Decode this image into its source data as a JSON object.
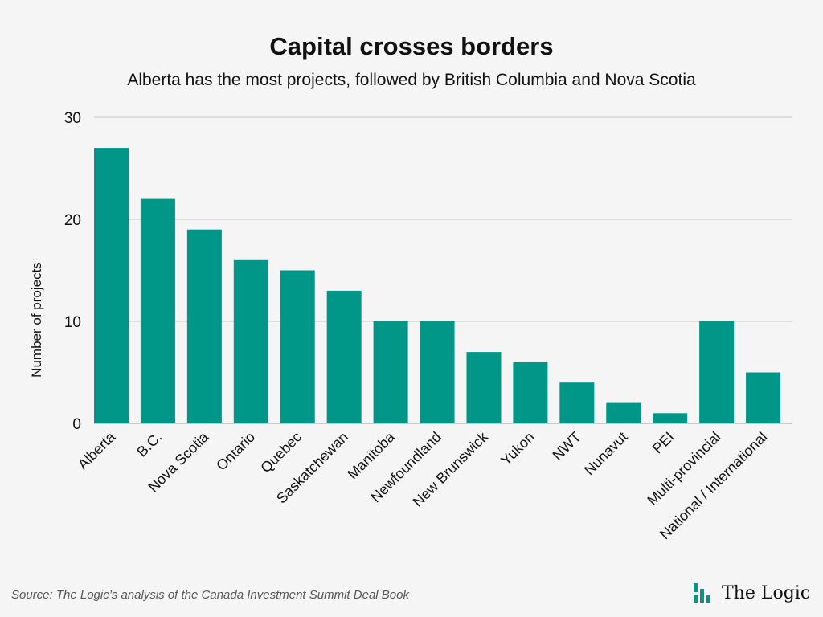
{
  "colors": {
    "bar": "#009688",
    "grid": "#c8c8c8",
    "background": "#f5f5f5",
    "text": "#111111"
  },
  "footer": {
    "source": "Source: The Logic’s analysis of the Canada Investment Summit Deal Book",
    "brand": "The Logic",
    "brand_icon": "the-logic-bars-icon"
  },
  "chart_data": {
    "type": "bar",
    "title": "Capital crosses borders",
    "subtitle": "Alberta has the most projects, followed by British Columbia and Nova Scotia",
    "xlabel": "",
    "ylabel": "Number of projects",
    "ylim": [
      0,
      30
    ],
    "yticks": [
      0,
      10,
      20,
      30
    ],
    "grid": true,
    "categories": [
      "Alberta",
      "B.C.",
      "Nova Scotia",
      "Ontario",
      "Quebec",
      "Saskatchewan",
      "Manitoba",
      "Newfoundland",
      "New Brunswick",
      "Yukon",
      "NWT",
      "Nunavut",
      "PEI",
      "Multi-provincial",
      "National / International"
    ],
    "values": [
      27,
      22,
      19,
      16,
      15,
      13,
      10,
      10,
      7,
      6,
      4,
      2,
      1,
      10,
      5
    ]
  }
}
